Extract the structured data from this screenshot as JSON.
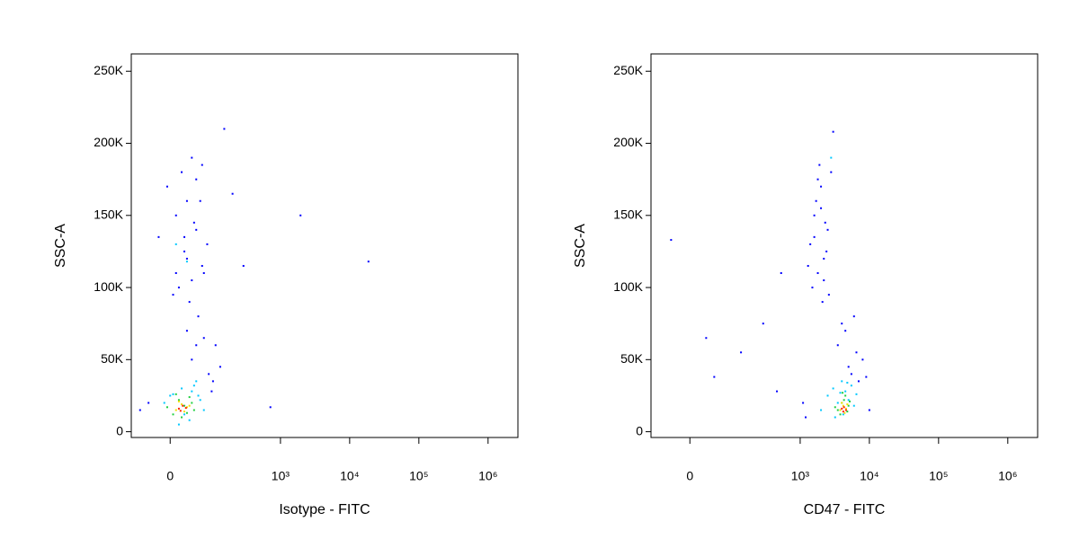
{
  "chart_data": [
    {
      "type": "scatter",
      "xlabel": "Isotype - FITC",
      "ylabel": "SSC-A",
      "xscale": "biexponential",
      "xlim": [
        -86,
        2700000
      ],
      "ylim": [
        -4000,
        262000
      ],
      "xticks": [
        0,
        {
          "value": 1000,
          "label": "10³"
        },
        {
          "value": 10000,
          "label": "10⁴"
        },
        {
          "value": 100000,
          "label": "10⁵"
        },
        {
          "value": 1000000,
          "label": "10⁶"
        }
      ],
      "yticks": [
        0,
        {
          "value": 50000,
          "label": "50K"
        },
        {
          "value": 100000,
          "label": "100K"
        },
        {
          "value": 150000,
          "label": "150K"
        },
        {
          "value": 200000,
          "label": "200K"
        },
        {
          "value": 250000,
          "label": "250K"
        }
      ],
      "series": [
        {
          "color": "#0000ff",
          "x": [
            -20,
            10,
            30,
            50,
            70,
            -5,
            20,
            40,
            60,
            80,
            15,
            35,
            55,
            25,
            45,
            65,
            5,
            30,
            50,
            40,
            100,
            110,
            150,
            200,
            290,
            1950,
            18700,
            715,
            -40,
            -60,
            130,
            95,
            85,
            70,
            40,
            30,
            50,
            65,
            25,
            10
          ],
          "y": [
            135000,
            150000,
            120000,
            140000,
            110000,
            170000,
            180000,
            190000,
            160000,
            130000,
            100000,
            90000,
            80000,
            125000,
            145000,
            115000,
            95000,
            70000,
            60000,
            50000,
            35000,
            60000,
            210000,
            165000,
            115000,
            150000,
            118000,
            17000,
            20000,
            15000,
            45000,
            28000,
            40000,
            65000,
            105000,
            160000,
            175000,
            185000,
            135000,
            110000
          ]
        },
        {
          "color": "#00c8ff",
          "x": [
            0,
            20,
            40,
            -10,
            60,
            30,
            10,
            50,
            25,
            35,
            45,
            15,
            55,
            5,
            70
          ],
          "y": [
            25000,
            30000,
            28000,
            20000,
            22000,
            118000,
            130000,
            35000,
            12000,
            8000,
            32000,
            5000,
            25000,
            26000,
            15000
          ]
        },
        {
          "color": "#20d040",
          "x": [
            5,
            15,
            25,
            35,
            45,
            -5,
            10,
            30,
            40,
            20
          ],
          "y": [
            12000,
            22000,
            18000,
            24000,
            15000,
            17000,
            26000,
            13000,
            20000,
            10000
          ]
        },
        {
          "color": "#f0e000",
          "x": [
            10,
            20,
            30,
            15,
            25,
            35
          ],
          "y": [
            15000,
            19000,
            17000,
            21000,
            14000,
            18000
          ]
        },
        {
          "color": "#ff2000",
          "x": [
            15,
            22,
            28,
            18
          ],
          "y": [
            16000,
            18000,
            16500,
            14500
          ]
        }
      ]
    },
    {
      "type": "scatter",
      "xlabel": "CD47 - FITC",
      "ylabel": "SSC-A",
      "xscale": "biexponential",
      "xlim": [
        -86,
        2700000
      ],
      "ylim": [
        -4000,
        262000
      ],
      "xticks": [
        0,
        {
          "value": 1000,
          "label": "10³"
        },
        {
          "value": 10000,
          "label": "10⁴"
        },
        {
          "value": 100000,
          "label": "10⁵"
        },
        {
          "value": 1000000,
          "label": "10⁶"
        }
      ],
      "yticks": [
        0,
        {
          "value": 50000,
          "label": "50K"
        },
        {
          "value": 100000,
          "label": "100K"
        },
        {
          "value": 150000,
          "label": "150K"
        },
        {
          "value": 200000,
          "label": "200K"
        },
        {
          "value": 250000,
          "label": "250K"
        }
      ],
      "series": [
        {
          "color": "#0000ff",
          "x": [
            1400,
            1600,
            1800,
            2000,
            2200,
            2500,
            1500,
            1700,
            1900,
            2400,
            2100,
            2800,
            3000,
            1300,
            1600,
            2300,
            2600,
            1800,
            2000,
            2200,
            3500,
            4000,
            5000,
            6000,
            7000,
            8000,
            4500,
            5500,
            6500,
            9000,
            -34,
            29,
            46,
            135,
            290,
            530,
            460,
            1200,
            1100,
            10000
          ],
          "y": [
            130000,
            150000,
            110000,
            170000,
            120000,
            140000,
            100000,
            160000,
            185000,
            125000,
            90000,
            180000,
            208000,
            115000,
            135000,
            145000,
            95000,
            175000,
            155000,
            105000,
            60000,
            75000,
            45000,
            80000,
            35000,
            50000,
            70000,
            40000,
            55000,
            38000,
            133000,
            65000,
            38000,
            55000,
            75000,
            110000,
            28000,
            10000,
            20000,
            15000
          ]
        },
        {
          "color": "#00c8ff",
          "x": [
            2500,
            3000,
            3500,
            4000,
            4500,
            5000,
            5500,
            6000,
            2000,
            3200,
            4200,
            4800,
            6500,
            2800,
            3800
          ],
          "y": [
            25000,
            30000,
            20000,
            35000,
            28000,
            22000,
            32000,
            18000,
            15000,
            10000,
            12000,
            34000,
            26000,
            190000,
            27000
          ]
        },
        {
          "color": "#20d040",
          "x": [
            3500,
            4000,
            4500,
            5000,
            3800,
            4300,
            4800,
            3200,
            5200,
            4100
          ],
          "y": [
            15000,
            20000,
            25000,
            18000,
            12000,
            22000,
            14000,
            17000,
            21000,
            27000
          ]
        },
        {
          "color": "#f0e000",
          "x": [
            3800,
            4200,
            4600,
            4000,
            4400,
            4800
          ],
          "y": [
            15000,
            18000,
            16000,
            20000,
            13000,
            19000
          ]
        },
        {
          "color": "#ff2000",
          "x": [
            4000,
            4300,
            4600,
            4200
          ],
          "y": [
            16000,
            17000,
            15000,
            14000
          ]
        }
      ]
    }
  ]
}
